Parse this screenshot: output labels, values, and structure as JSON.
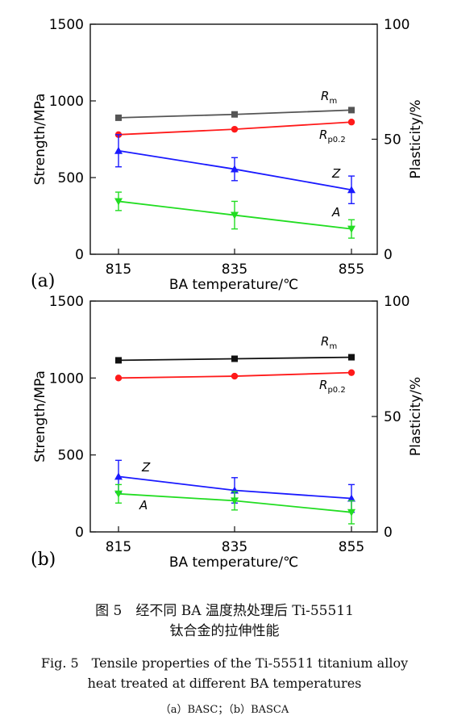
{
  "figure": {
    "caption_cn_line1": "图 5　经不同 BA 温度热处理后 Ti-55511",
    "caption_cn_line2": "钛合金的拉伸性能",
    "caption_en_line1": "Fig. 5　Tensile properties of the Ti-55511 titanium alloy",
    "caption_en_line2": "heat treated at different BA temperatures",
    "caption_sub": "（a）BASC；（b）BASCA"
  },
  "colors": {
    "Rm": "#555555",
    "Rm_b": "#111111",
    "Rp02": "#ff1a1a",
    "Z": "#1a1aff",
    "A": "#22dd22"
  },
  "chart_data": [
    {
      "panel_label": "(a)",
      "type": "line",
      "x": [
        815,
        835,
        855
      ],
      "xticks": [
        "815",
        "835",
        "855"
      ],
      "xlabel": "BA temperature/℃",
      "ylabel_left": "Strength/MPa",
      "ylabel_right": "Plasticity/%",
      "ylim_left": [
        0,
        1500
      ],
      "yticks_left": [
        "0",
        "500",
        "1000",
        "1500"
      ],
      "ylim_right": [
        0,
        100
      ],
      "yticks_right": [
        "0",
        "50",
        "100"
      ],
      "grid": false,
      "series": [
        {
          "name": "R",
          "sub": "m",
          "axis": "left",
          "marker": "square",
          "color_key": "Rm",
          "values": [
            890,
            912,
            940
          ],
          "errors": [
            0,
            0,
            0
          ]
        },
        {
          "name": "R",
          "sub": "p0.2",
          "axis": "left",
          "marker": "circle",
          "color_key": "Rp02",
          "values": [
            780,
            815,
            862
          ],
          "errors": [
            0,
            0,
            0
          ]
        },
        {
          "name": "Z",
          "sub": "",
          "axis": "right",
          "marker": "triangle",
          "color_key": "Z",
          "values": [
            45,
            37,
            28
          ],
          "errors": [
            7,
            5,
            6
          ]
        },
        {
          "name": "A",
          "sub": "",
          "axis": "right",
          "marker": "triangle-down",
          "color_key": "A",
          "values": [
            23,
            17,
            11
          ],
          "errors": [
            4,
            6,
            4
          ]
        }
      ]
    },
    {
      "panel_label": "(b)",
      "type": "line",
      "x": [
        815,
        835,
        855
      ],
      "xticks": [
        "815",
        "835",
        "855"
      ],
      "xlabel": "BA temperature/℃",
      "ylabel_left": "Strength/MPa",
      "ylabel_right": "Plasticity/%",
      "ylim_left": [
        0,
        1500
      ],
      "yticks_left": [
        "0",
        "500",
        "1000",
        "1500"
      ],
      "ylim_right": [
        0,
        100
      ],
      "yticks_right": [
        "0",
        "50",
        "100"
      ],
      "grid": false,
      "series": [
        {
          "name": "R",
          "sub": "m",
          "axis": "left",
          "marker": "square",
          "color_key": "Rm_b",
          "values": [
            1115,
            1125,
            1135
          ],
          "errors": [
            0,
            0,
            0
          ]
        },
        {
          "name": "R",
          "sub": "p0.2",
          "axis": "left",
          "marker": "circle",
          "color_key": "Rp02",
          "values": [
            1000,
            1012,
            1035
          ],
          "errors": [
            0,
            0,
            0
          ]
        },
        {
          "name": "Z",
          "sub": "",
          "axis": "right",
          "marker": "triangle",
          "color_key": "Z",
          "values": [
            24,
            18,
            14.5
          ],
          "errors": [
            7,
            5.5,
            6
          ]
        },
        {
          "name": "A",
          "sub": "",
          "axis": "right",
          "marker": "triangle-down",
          "color_key": "A",
          "values": [
            16.5,
            13.5,
            8.5
          ],
          "errors": [
            4,
            4,
            5
          ]
        }
      ]
    }
  ]
}
